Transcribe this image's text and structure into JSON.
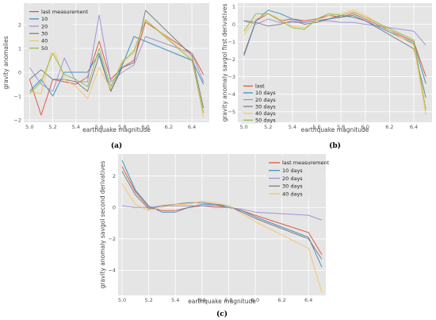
{
  "chart_data": [
    {
      "id": "a",
      "panel_label": "(a)",
      "type": "line",
      "xlabel": "earthquake magnitude",
      "ylabel": "gravity anomalies",
      "xlim": [
        4.95,
        6.55
      ],
      "ylim": [
        -2.1,
        2.9
      ],
      "xticks": [
        5.0,
        5.2,
        5.4,
        5.6,
        5.8,
        6.0,
        6.2,
        6.4
      ],
      "xtick_labels": [
        "5.0",
        "5.2",
        "5.4",
        "5.6",
        "5.8",
        "6.0",
        "6.2",
        "6.4"
      ],
      "yticks": [
        -2,
        -1,
        0,
        1,
        2
      ],
      "ytick_labels": [
        "−2",
        "−1",
        "0",
        "1",
        "2"
      ],
      "grid": true,
      "legend_position": "top-left",
      "x": [
        5.0,
        5.1,
        5.2,
        5.3,
        5.4,
        5.5,
        5.6,
        5.7,
        5.8,
        5.9,
        6.0,
        6.4,
        6.5
      ],
      "series": [
        {
          "name": "last measurement",
          "color": "#e24a33",
          "values": [
            -0.3,
            -1.8,
            -0.3,
            -0.4,
            -0.5,
            -0.2,
            1.3,
            -0.3,
            0.2,
            0.5,
            2.1,
            0.8,
            -0.1
          ]
        },
        {
          "name": "10",
          "color": "#348abd",
          "values": [
            -0.8,
            -0.3,
            -1.0,
            0.0,
            0.0,
            0.0,
            0.8,
            -0.8,
            0.3,
            1.5,
            1.3,
            0.5,
            -0.5
          ]
        },
        {
          "name": "20",
          "color": "#988ed5",
          "values": [
            0.2,
            -0.5,
            -0.8,
            0.6,
            -0.4,
            -0.4,
            2.4,
            -0.4,
            0.0,
            0.3,
            1.5,
            0.8,
            -0.4
          ]
        },
        {
          "name": "30",
          "color": "#777777",
          "values": [
            -0.3,
            0.1,
            -0.3,
            -0.3,
            -0.4,
            -0.8,
            0.7,
            -0.8,
            0.2,
            0.4,
            2.6,
            0.7,
            -1.5
          ]
        },
        {
          "name": "40",
          "color": "#fbc15e",
          "values": [
            -0.8,
            -0.9,
            1.1,
            -0.3,
            -0.6,
            -1.1,
            0.2,
            -0.7,
            0.5,
            0.8,
            2.2,
            0.6,
            -1.9
          ]
        },
        {
          "name": "50",
          "color": "#8eba42",
          "values": [
            -0.9,
            -0.4,
            0.8,
            -0.1,
            -0.3,
            -0.6,
            1.0,
            -0.6,
            0.4,
            0.9,
            2.2,
            0.5,
            -1.7
          ]
        }
      ]
    },
    {
      "id": "b",
      "panel_label": "(b)",
      "type": "line",
      "xlabel": "earthquake magnitude",
      "ylabel": "gravity anomaly savgol first derivatives",
      "xlim": [
        4.95,
        6.55
      ],
      "ylim": [
        -5.6,
        1.2
      ],
      "xticks": [
        5.0,
        5.2,
        5.4,
        5.6,
        5.8,
        6.0,
        6.2,
        6.4
      ],
      "xtick_labels": [
        "5.0",
        "5.2",
        "5.4",
        "5.6",
        "5.8",
        "6.0",
        "6.2",
        "6.4"
      ],
      "yticks": [
        -5,
        -4,
        -3,
        -2,
        -1,
        0,
        1
      ],
      "ytick_labels": [
        "−5",
        "−4",
        "−3",
        "−2",
        "−1",
        "0",
        "1"
      ],
      "grid": true,
      "legend_position": "bottom-left",
      "x": [
        5.0,
        5.1,
        5.2,
        5.3,
        5.4,
        5.5,
        5.6,
        5.7,
        5.8,
        5.9,
        6.0,
        6.4,
        6.5
      ],
      "series": [
        {
          "name": "last",
          "color": "#e24a33",
          "values": [
            -1.7,
            0.2,
            0.6,
            0.2,
            0.3,
            0.2,
            0.3,
            0.5,
            0.4,
            0.6,
            0.3,
            -1.0,
            -3.0
          ]
        },
        {
          "name": "10 days",
          "color": "#348abd",
          "values": [
            -1.8,
            0.2,
            0.8,
            0.6,
            0.3,
            0.1,
            0.2,
            0.3,
            0.4,
            0.5,
            0.2,
            -1.1,
            -3.4
          ]
        },
        {
          "name": "20 days",
          "color": "#988ed5",
          "values": [
            0.2,
            0.0,
            0.3,
            0.1,
            0.1,
            0.1,
            0.2,
            0.2,
            0.1,
            0.1,
            0.0,
            -0.4,
            -1.2
          ]
        },
        {
          "name": "30 days",
          "color": "#777777",
          "values": [
            0.2,
            0.1,
            -0.1,
            0.0,
            0.2,
            0.0,
            0.1,
            0.3,
            0.5,
            0.4,
            0.2,
            -1.4,
            -4.2
          ]
        },
        {
          "name": "40 days",
          "color": "#fbc15e",
          "values": [
            -0.6,
            0.3,
            0.6,
            0.3,
            -0.1,
            -0.2,
            0.2,
            0.5,
            0.6,
            0.8,
            0.5,
            -1.2,
            -5.2
          ]
        },
        {
          "name": "50 days",
          "color": "#8eba42",
          "values": [
            -0.4,
            0.6,
            0.6,
            0.2,
            -0.2,
            -0.3,
            0.3,
            0.6,
            0.5,
            0.7,
            0.4,
            -0.9,
            -4.9
          ]
        }
      ]
    },
    {
      "id": "c",
      "panel_label": "(c)",
      "type": "line",
      "xlabel": "earthquake magnitude",
      "ylabel": "gravity anomaly savgol second derivatives",
      "xlim": [
        4.97,
        6.53
      ],
      "ylim": [
        -5.6,
        3.4
      ],
      "xticks": [
        5.0,
        5.2,
        5.4,
        5.6,
        5.8,
        6.0,
        6.2,
        6.4
      ],
      "xtick_labels": [
        "5.0",
        "5.2",
        "5.4",
        "5.6",
        "5.8",
        "6.0",
        "6.2",
        "6.4"
      ],
      "yticks": [
        -4,
        -2,
        0,
        2
      ],
      "ytick_labels": [
        "−4",
        "−2",
        "0",
        "2"
      ],
      "grid": true,
      "legend_position": "top-right",
      "x": [
        5.0,
        5.1,
        5.2,
        5.3,
        5.4,
        5.5,
        5.6,
        5.7,
        5.8,
        5.9,
        6.0,
        6.4,
        6.5
      ],
      "series": [
        {
          "name": "last measurement",
          "color": "#e24a33",
          "values": [
            2.6,
            1.0,
            0.0,
            -0.2,
            -0.2,
            0.0,
            0.1,
            0.1,
            0.0,
            -0.2,
            -0.5,
            -1.6,
            -3.0
          ]
        },
        {
          "name": "10 days",
          "color": "#348abd",
          "values": [
            3.0,
            1.1,
            0.1,
            -0.3,
            -0.3,
            0.0,
            0.2,
            0.2,
            0.0,
            -0.2,
            -0.6,
            -1.9,
            -3.8
          ]
        },
        {
          "name": "20 days",
          "color": "#988ed5",
          "values": [
            0.1,
            0.0,
            0.0,
            0.1,
            0.1,
            0.1,
            0.1,
            0.0,
            0.0,
            -0.1,
            -0.3,
            -0.5,
            -0.8
          ]
        },
        {
          "name": "30 days",
          "color": "#777777",
          "values": [
            2.3,
            0.8,
            -0.1,
            0.1,
            0.2,
            0.3,
            0.3,
            0.2,
            0.1,
            -0.3,
            -0.7,
            -2.0,
            -3.3
          ]
        },
        {
          "name": "40 days",
          "color": "#fbc15e",
          "values": [
            1.5,
            0.2,
            -0.2,
            0.0,
            0.2,
            0.2,
            0.4,
            0.3,
            0.1,
            -0.4,
            -0.9,
            -2.6,
            -5.4
          ]
        }
      ]
    }
  ]
}
